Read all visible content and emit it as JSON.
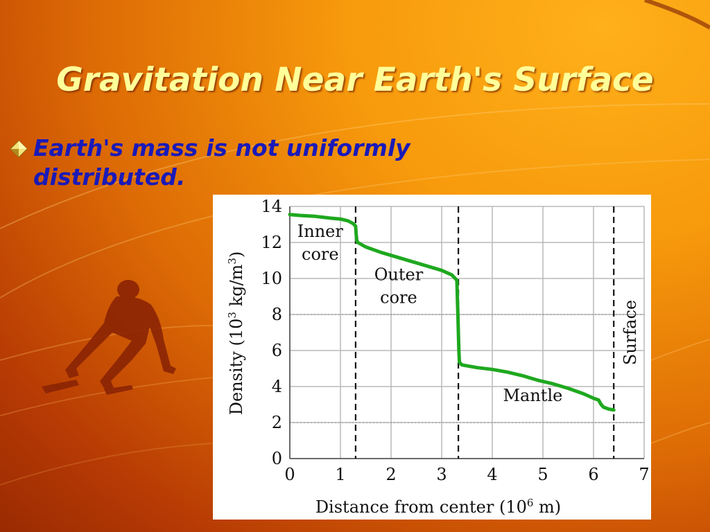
{
  "slide": {
    "title": "Gravitation Near Earth's Surface",
    "bullet": "Earth's mass is not uniformly distributed."
  },
  "colors": {
    "title": "#ffff99",
    "bullet_text": "#1a1ab8",
    "curve": "#1fa81f",
    "grid": "#b8b8b8"
  },
  "icons": {
    "bullet": "diamond-bullet-icon",
    "decoration": "sprinter-silhouette-icon"
  },
  "chart_data": {
    "type": "line",
    "title": "",
    "xlabel_parts": [
      "Distance from center  (10",
      "6",
      " m)"
    ],
    "ylabel_parts": [
      "Density (10",
      "3",
      " kg/m",
      "3",
      ")"
    ],
    "xlim": [
      0,
      7
    ],
    "ylim": [
      0,
      14
    ],
    "xticks": [
      0,
      1,
      2,
      3,
      4,
      5,
      6,
      7
    ],
    "yticks": [
      0,
      2,
      4,
      6,
      8,
      10,
      12,
      14
    ],
    "grid": true,
    "series": [
      {
        "x": [
          0,
          0.2,
          0.5,
          0.8,
          1.0,
          1.15,
          1.25,
          1.3,
          1.31,
          1.32,
          1.34,
          1.5,
          1.8,
          2.1,
          2.4,
          2.7,
          3.0,
          3.2,
          3.3,
          3.31,
          3.32,
          3.33,
          3.34,
          3.35,
          3.4,
          3.7,
          4.0,
          4.3,
          4.6,
          4.9,
          5.2,
          5.5,
          5.8,
          6.0,
          6.1,
          6.15,
          6.2,
          6.3,
          6.4
        ],
        "y": [
          13.55,
          13.5,
          13.45,
          13.35,
          13.3,
          13.2,
          13.05,
          12.9,
          12.5,
          12.15,
          12.0,
          11.75,
          11.45,
          11.2,
          10.95,
          10.7,
          10.45,
          10.2,
          9.9,
          9.0,
          8.0,
          7.0,
          6.0,
          5.35,
          5.2,
          5.05,
          4.95,
          4.8,
          4.6,
          4.35,
          4.15,
          3.9,
          3.6,
          3.35,
          3.25,
          3.0,
          2.85,
          2.75,
          2.7
        ]
      }
    ],
    "boundaries": [
      1.3,
      3.33,
      6.4
    ],
    "annotations": [
      {
        "lines": [
          "Inner",
          "core"
        ],
        "x": 0.6,
        "y": 12.3
      },
      {
        "lines": [
          "Outer",
          "core"
        ],
        "x": 2.15,
        "y": 9.9
      },
      {
        "lines": [
          "Mantle"
        ],
        "x": 4.8,
        "y": 3.2
      },
      {
        "lines": [
          "Surface"
        ],
        "x": 6.75,
        "y": 7,
        "rotate": true
      }
    ]
  }
}
